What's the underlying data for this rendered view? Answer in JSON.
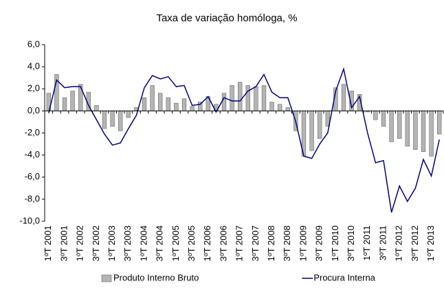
{
  "chart_data": {
    "type": "combo",
    "title": "Taxa de variação homóloga, %",
    "categories": [
      "1ºT 2001",
      null,
      "3ºT 2001",
      null,
      "1ºT 2002",
      null,
      "3ºT 2002",
      null,
      "1ºT 2003",
      null,
      "3ºT 2003",
      null,
      "1ºT 2004",
      null,
      "3ºT 2004",
      null,
      "1ºT 2005",
      null,
      "3ºT 2005",
      null,
      "1ºT 2006",
      null,
      "3ºT 2006",
      null,
      "1ºT 2007",
      null,
      "3ºT 2007",
      null,
      "1ºT 2008",
      null,
      "3ºT 2008",
      null,
      "1ºT 2009",
      null,
      "3ºT 2009",
      null,
      "1ºT 2010",
      null,
      "3ºT 2010",
      null,
      "1ºT 2011",
      null,
      "3ºT 2011",
      null,
      "1ºT 2012",
      null,
      "3ºT 2012",
      null,
      "1ºT 2013",
      null
    ],
    "series": [
      {
        "name": "Produto Interno Bruto",
        "type": "bar",
        "color": "#b4b4b4",
        "values": [
          1.6,
          3.3,
          1.2,
          1.8,
          2.4,
          1.7,
          0.5,
          -1.6,
          -1.4,
          -1.8,
          -0.6,
          0.3,
          1.2,
          2.3,
          1.6,
          1.2,
          0.7,
          1.1,
          0.4,
          0.8,
          1.3,
          0.6,
          1.6,
          2.3,
          2.6,
          2.3,
          2.2,
          2.3,
          0.8,
          0.6,
          0.3,
          -1.8,
          -4.1,
          -3.6,
          -2.5,
          -1.4,
          2.1,
          2.4,
          1.8,
          1.5,
          -0.1,
          -0.8,
          -1.4,
          -2.8,
          -2.5,
          -3.2,
          -3.5,
          -3.7,
          -4.1,
          -2.1
        ]
      },
      {
        "name": "Procura Interna",
        "type": "line",
        "color": "#000080",
        "values": [
          -0.2,
          2.8,
          2.1,
          2.2,
          2.2,
          0.5,
          -0.8,
          -2.1,
          -3.1,
          -2.9,
          -1.6,
          -0.4,
          2.1,
          3.2,
          2.9,
          3.1,
          2.2,
          2.3,
          0.5,
          0.6,
          1.3,
          -0.1,
          1.2,
          0.9,
          0.9,
          1.8,
          2.2,
          3.3,
          1.7,
          1.2,
          1.2,
          -1.0,
          -4.1,
          -4.3,
          -3.0,
          -2.0,
          1.8,
          3.8,
          0.3,
          1.3,
          -2.0,
          -4.7,
          -4.5,
          -9.2,
          -6.8,
          -8.2,
          -7.0,
          -4.4,
          -5.9,
          -2.6
        ]
      }
    ],
    "ylim": [
      -10,
      6
    ],
    "yticks": [
      {
        "value": -10,
        "label": "-10,0"
      },
      {
        "value": -8,
        "label": "-8,0"
      },
      {
        "value": -6,
        "label": "-6,0"
      },
      {
        "value": -4,
        "label": "-4,0"
      },
      {
        "value": -2,
        "label": "-2,0"
      },
      {
        "value": 0,
        "label": "0,0"
      },
      {
        "value": 2,
        "label": "2,0"
      },
      {
        "value": 4,
        "label": "4,0"
      },
      {
        "value": 6,
        "label": "6,0"
      }
    ],
    "grid": false,
    "legend": "bottom"
  }
}
